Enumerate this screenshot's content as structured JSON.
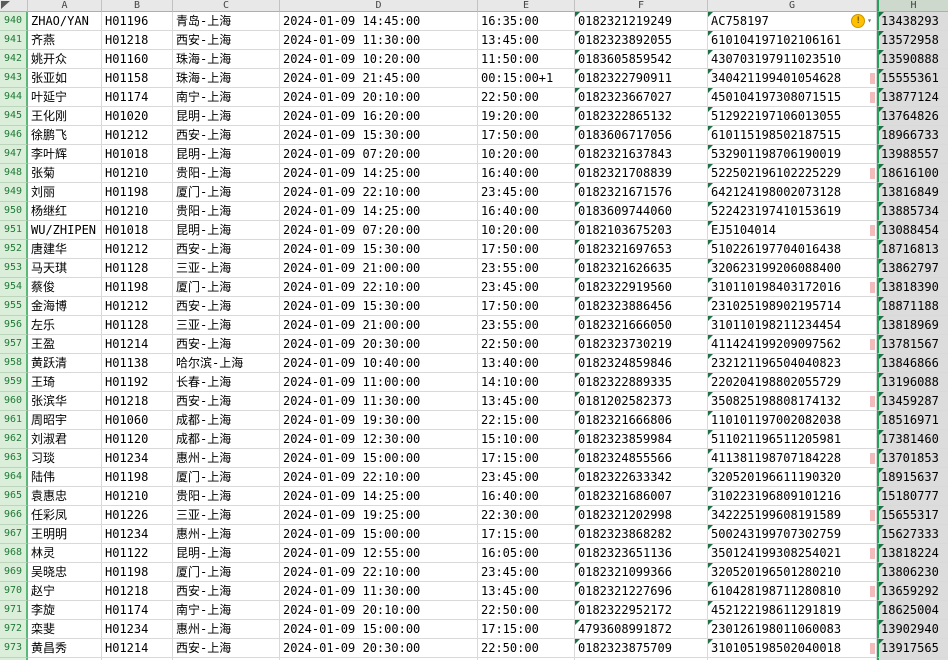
{
  "sheet": {
    "selected_column": "H",
    "column_headers": [
      "A",
      "B",
      "C",
      "D",
      "E",
      "F",
      "G",
      "H"
    ],
    "partial_row_num": "974",
    "warning_row": "940",
    "warning_glyph": "!",
    "warning_dropdown_glyph": "▾",
    "pink_mark_rows": [
      "943",
      "944",
      "948",
      "951",
      "954",
      "957",
      "960",
      "963",
      "966",
      "968",
      "970",
      "973"
    ],
    "colors": {
      "selection_green": "#26a05a",
      "selection_green_light": "#5cb878",
      "row_header_bg": "#daeeda",
      "row_header_text": "#1f7a35",
      "header_bg": "#e8e8e8",
      "selected_header_bg": "#ced9ce",
      "selected_fill": "#dcdcdc",
      "warning_yellow": "#ffc000",
      "flag_triangle_green": "#1e7145",
      "pink_mark": "#f2bcbc"
    },
    "rows": [
      {
        "num": "940",
        "name": "ZHAO/YAN",
        "flight": "H01196",
        "route": "青岛-上海",
        "depart": "2024-01-09 14:45:00",
        "arrive": "16:35:00",
        "ticket": "0182321219249",
        "id": "AC758197",
        "phone": "13438293"
      },
      {
        "num": "941",
        "name": "齐燕",
        "flight": "H01218",
        "route": "西安-上海",
        "depart": "2024-01-09 11:30:00",
        "arrive": "13:45:00",
        "ticket": "0182323892055",
        "id": "610104197102106161",
        "phone": "13572958"
      },
      {
        "num": "942",
        "name": "姚开众",
        "flight": "H01160",
        "route": "珠海-上海",
        "depart": "2024-01-09 10:20:00",
        "arrive": "11:50:00",
        "ticket": "0183605859542",
        "id": "430703197911023510",
        "phone": "13590888"
      },
      {
        "num": "943",
        "name": "张亚如",
        "flight": "H01158",
        "route": "珠海-上海",
        "depart": "2024-01-09 21:45:00",
        "arrive": "00:15:00+1",
        "ticket": "0182322790911",
        "id": "340421199401054628",
        "phone": "15555361"
      },
      {
        "num": "944",
        "name": "叶延宁",
        "flight": "H01174",
        "route": "南宁-上海",
        "depart": "2024-01-09 20:10:00",
        "arrive": "22:50:00",
        "ticket": "0182323667027",
        "id": "450104197308071515",
        "phone": "13877124"
      },
      {
        "num": "945",
        "name": "王化刚",
        "flight": "H01020",
        "route": "昆明-上海",
        "depart": "2024-01-09 16:20:00",
        "arrive": "19:20:00",
        "ticket": "0182322865132",
        "id": "512922197106013055",
        "phone": "13764826"
      },
      {
        "num": "946",
        "name": "徐鹏飞",
        "flight": "H01212",
        "route": "西安-上海",
        "depart": "2024-01-09 15:30:00",
        "arrive": "17:50:00",
        "ticket": "0183606717056",
        "id": "610115198502187515",
        "phone": "18966733"
      },
      {
        "num": "947",
        "name": "李叶辉",
        "flight": "H01018",
        "route": "昆明-上海",
        "depart": "2024-01-09 07:20:00",
        "arrive": "10:20:00",
        "ticket": "0182321637843",
        "id": "532901198706190019",
        "phone": "13988557"
      },
      {
        "num": "948",
        "name": "张菊",
        "flight": "H01210",
        "route": "贵阳-上海",
        "depart": "2024-01-09 14:25:00",
        "arrive": "16:40:00",
        "ticket": "0182321708839",
        "id": "522502196102225229",
        "phone": "18616100"
      },
      {
        "num": "949",
        "name": "刘丽",
        "flight": "H01198",
        "route": "厦门-上海",
        "depart": "2024-01-09 22:10:00",
        "arrive": "23:45:00",
        "ticket": "0182321671576",
        "id": "642124198002073128",
        "phone": "13816849"
      },
      {
        "num": "950",
        "name": "杨继红",
        "flight": "H01210",
        "route": "贵阳-上海",
        "depart": "2024-01-09 14:25:00",
        "arrive": "16:40:00",
        "ticket": "0183609744060",
        "id": "522423197410153619",
        "phone": "13885734"
      },
      {
        "num": "951",
        "name": "WU/ZHIPEN",
        "flight": "H01018",
        "route": "昆明-上海",
        "depart": "2024-01-09 07:20:00",
        "arrive": "10:20:00",
        "ticket": "0182103675203",
        "id": "EJ5104014",
        "phone": "13088454"
      },
      {
        "num": "952",
        "name": "唐建华",
        "flight": "H01212",
        "route": "西安-上海",
        "depart": "2024-01-09 15:30:00",
        "arrive": "17:50:00",
        "ticket": "0182321697653",
        "id": "510226197704016438",
        "phone": "18716813"
      },
      {
        "num": "953",
        "name": "马天琪",
        "flight": "H01128",
        "route": "三亚-上海",
        "depart": "2024-01-09 21:00:00",
        "arrive": "23:55:00",
        "ticket": "0182321626635",
        "id": "320623199206088400",
        "phone": "13862797"
      },
      {
        "num": "954",
        "name": "蔡俊",
        "flight": "H01198",
        "route": "厦门-上海",
        "depart": "2024-01-09 22:10:00",
        "arrive": "23:45:00",
        "ticket": "0182322919560",
        "id": "310110198403172016",
        "phone": "13818390"
      },
      {
        "num": "955",
        "name": "金海博",
        "flight": "H01212",
        "route": "西安-上海",
        "depart": "2024-01-09 15:30:00",
        "arrive": "17:50:00",
        "ticket": "0182323886456",
        "id": "231025198902195714",
        "phone": "18871188"
      },
      {
        "num": "956",
        "name": "左乐",
        "flight": "H01128",
        "route": "三亚-上海",
        "depart": "2024-01-09 21:00:00",
        "arrive": "23:55:00",
        "ticket": "0182321666050",
        "id": "310110198211234454",
        "phone": "13818969"
      },
      {
        "num": "957",
        "name": "王盈",
        "flight": "H01214",
        "route": "西安-上海",
        "depart": "2024-01-09 20:30:00",
        "arrive": "22:50:00",
        "ticket": "0182323730219",
        "id": "411424199209097562",
        "phone": "13781567"
      },
      {
        "num": "958",
        "name": "黄跃清",
        "flight": "H01138",
        "route": "哈尔滨-上海",
        "depart": "2024-01-09 10:40:00",
        "arrive": "13:40:00",
        "ticket": "0182324859846",
        "id": "232121196504040823",
        "phone": "13846866"
      },
      {
        "num": "959",
        "name": "王琦",
        "flight": "H01192",
        "route": "长春-上海",
        "depart": "2024-01-09 11:00:00",
        "arrive": "14:10:00",
        "ticket": "0182322889335",
        "id": "220204198802055729",
        "phone": "13196088"
      },
      {
        "num": "960",
        "name": "张滨华",
        "flight": "H01218",
        "route": "西安-上海",
        "depart": "2024-01-09 11:30:00",
        "arrive": "13:45:00",
        "ticket": "0181202582373",
        "id": "350825198808174132",
        "phone": "13459287"
      },
      {
        "num": "961",
        "name": "周昭宇",
        "flight": "H01060",
        "route": "成都-上海",
        "depart": "2024-01-09 19:30:00",
        "arrive": "22:15:00",
        "ticket": "0182321666806",
        "id": "110101197002082038",
        "phone": "18516971"
      },
      {
        "num": "962",
        "name": "刘淑君",
        "flight": "H01120",
        "route": "成都-上海",
        "depart": "2024-01-09 12:30:00",
        "arrive": "15:10:00",
        "ticket": "0182323859984",
        "id": "511021196511205981",
        "phone": "17381460"
      },
      {
        "num": "963",
        "name": "习琰",
        "flight": "H01234",
        "route": "惠州-上海",
        "depart": "2024-01-09 15:00:00",
        "arrive": "17:15:00",
        "ticket": "0182324855566",
        "id": "411381198707184228",
        "phone": "13701853"
      },
      {
        "num": "964",
        "name": "陆伟",
        "flight": "H01198",
        "route": "厦门-上海",
        "depart": "2024-01-09 22:10:00",
        "arrive": "23:45:00",
        "ticket": "0182322633342",
        "id": "320520196611190320",
        "phone": "18915637"
      },
      {
        "num": "965",
        "name": "袁惠忠",
        "flight": "H01210",
        "route": "贵阳-上海",
        "depart": "2024-01-09 14:25:00",
        "arrive": "16:40:00",
        "ticket": "0182321686007",
        "id": "310223196809101216",
        "phone": "15180777"
      },
      {
        "num": "966",
        "name": "任彩凤",
        "flight": "H01226",
        "route": "三亚-上海",
        "depart": "2024-01-09 19:25:00",
        "arrive": "22:30:00",
        "ticket": "0182321202998",
        "id": "342225199608191589",
        "phone": "15655317"
      },
      {
        "num": "967",
        "name": "王明明",
        "flight": "H01234",
        "route": "惠州-上海",
        "depart": "2024-01-09 15:00:00",
        "arrive": "17:15:00",
        "ticket": "0182323868282",
        "id": "500243199707302759",
        "phone": "15627333"
      },
      {
        "num": "968",
        "name": "林灵",
        "flight": "H01122",
        "route": "昆明-上海",
        "depart": "2024-01-09 12:55:00",
        "arrive": "16:05:00",
        "ticket": "0182323651136",
        "id": "350124199308254021",
        "phone": "13818224"
      },
      {
        "num": "969",
        "name": "吴晓忠",
        "flight": "H01198",
        "route": "厦门-上海",
        "depart": "2024-01-09 22:10:00",
        "arrive": "23:45:00",
        "ticket": "0182321099366",
        "id": "320520196501280210",
        "phone": "13806230"
      },
      {
        "num": "970",
        "name": "赵宁",
        "flight": "H01218",
        "route": "西安-上海",
        "depart": "2024-01-09 11:30:00",
        "arrive": "13:45:00",
        "ticket": "0182321227696",
        "id": "610428198711280810",
        "phone": "13659292"
      },
      {
        "num": "971",
        "name": "李旋",
        "flight": "H01174",
        "route": "南宁-上海",
        "depart": "2024-01-09 20:10:00",
        "arrive": "22:50:00",
        "ticket": "0182322952172",
        "id": "452122198611291819",
        "phone": "18625004"
      },
      {
        "num": "972",
        "name": "栾斐",
        "flight": "H01234",
        "route": "惠州-上海",
        "depart": "2024-01-09 15:00:00",
        "arrive": "17:15:00",
        "ticket": "4793608991872",
        "id": "230126198011060083",
        "phone": "13902940"
      },
      {
        "num": "973",
        "name": "黄昌秀",
        "flight": "H01214",
        "route": "西安-上海",
        "depart": "2024-01-09 20:30:00",
        "arrive": "22:50:00",
        "ticket": "0182323875709",
        "id": "310105198502040018",
        "phone": "13917565"
      }
    ]
  }
}
